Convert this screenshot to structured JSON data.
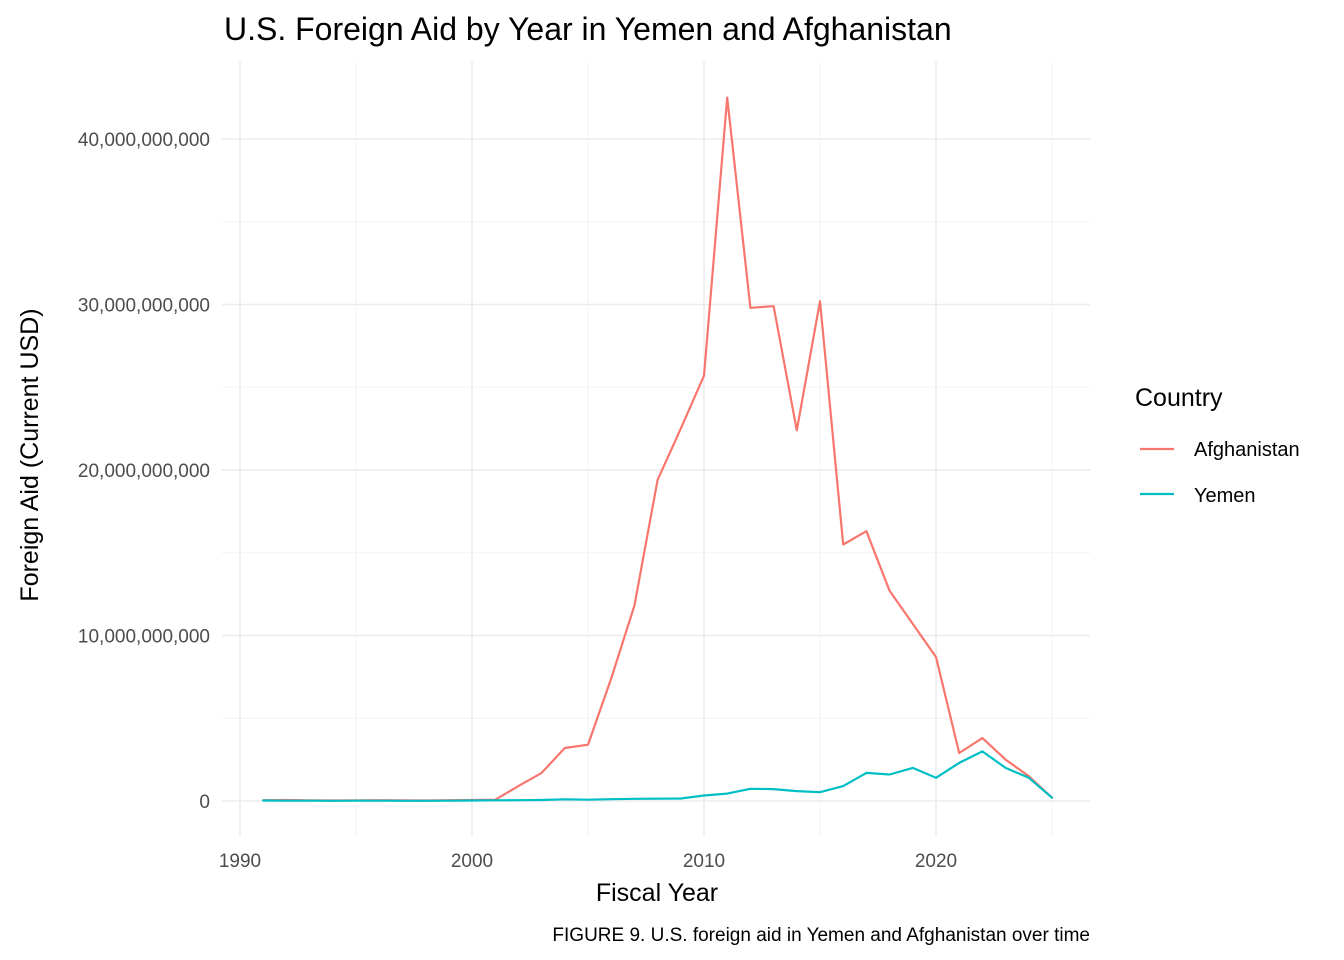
{
  "chart_data": {
    "type": "line",
    "title": "U.S. Foreign Aid by Year in Yemen and Afghanistan",
    "xlabel": "Fiscal Year",
    "ylabel": "Foreign Aid (Current USD)",
    "caption": "FIGURE 9. U.S. foreign aid in Yemen and Afghanistan over time",
    "legend_title": "Country",
    "legend_position": "right",
    "grid": true,
    "xlim": [
      1990,
      2025
    ],
    "ylim": [
      0,
      42500000000
    ],
    "x_ticks": [
      1990,
      2000,
      2010,
      2020
    ],
    "y_ticks": [
      0,
      10000000000,
      20000000000,
      30000000000,
      40000000000
    ],
    "x_tick_labels": [
      "1990",
      "2000",
      "2010",
      "2020"
    ],
    "y_tick_labels": [
      "0",
      "10,000,000,000",
      "20,000,000,000",
      "30,000,000,000",
      "40,000,000,000"
    ],
    "x": [
      1991,
      1992,
      1993,
      1994,
      1995,
      1996,
      1997,
      1998,
      1999,
      2000,
      2001,
      2002,
      2003,
      2004,
      2005,
      2006,
      2007,
      2008,
      2009,
      2010,
      2011,
      2012,
      2013,
      2014,
      2015,
      2016,
      2017,
      2018,
      2019,
      2020,
      2021,
      2022,
      2023,
      2024,
      2025
    ],
    "series": [
      {
        "name": "Afghanistan",
        "color": "#F8766D",
        "values": [
          50000000,
          60000000,
          40000000,
          30000000,
          40000000,
          50000000,
          40000000,
          30000000,
          50000000,
          60000000,
          80000000,
          900000000,
          1700000000,
          3200000000,
          3400000000,
          7400000000,
          11800000000,
          19400000000,
          22500000000,
          25700000000,
          42500000000,
          29800000000,
          29900000000,
          22400000000,
          30200000000,
          15500000000,
          16300000000,
          12700000000,
          10700000000,
          8700000000,
          2900000000,
          3800000000,
          2500000000,
          1500000000,
          200000000
        ]
      },
      {
        "name": "Yemen",
        "color": "#00BFC4",
        "values": [
          30000000,
          20000000,
          20000000,
          10000000,
          20000000,
          20000000,
          10000000,
          10000000,
          20000000,
          30000000,
          40000000,
          50000000,
          60000000,
          100000000,
          80000000,
          110000000,
          130000000,
          140000000,
          150000000,
          330000000,
          450000000,
          740000000,
          720000000,
          600000000,
          530000000,
          900000000,
          1700000000,
          1600000000,
          2000000000,
          1400000000,
          2300000000,
          3000000000,
          2000000000,
          1400000000,
          200000000
        ]
      }
    ]
  }
}
